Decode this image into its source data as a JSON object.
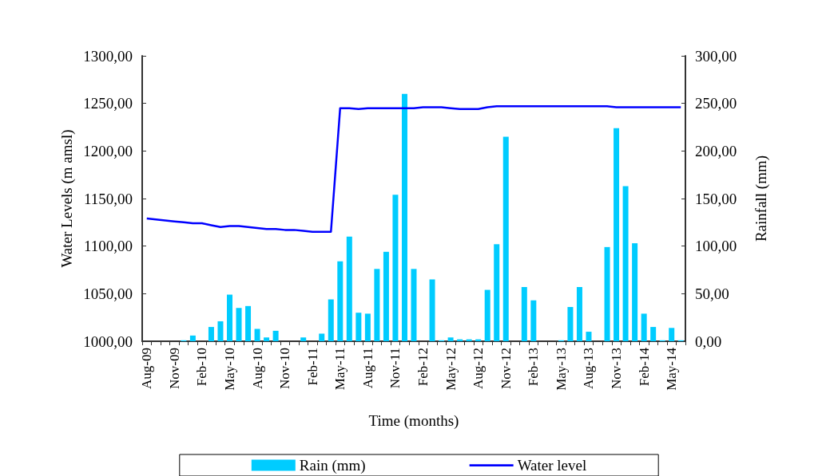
{
  "chart_data": {
    "type": "bar",
    "xlabel": "Time (months)",
    "ylabel": "Water Levels (m amsl)",
    "y2label": "Rainfall (mm)",
    "categories": [
      "Aug-09",
      null,
      null,
      "Nov-09",
      null,
      null,
      "Feb-10",
      null,
      null,
      "May-10",
      null,
      null,
      "Aug-10",
      null,
      null,
      "Nov-10",
      null,
      null,
      "Feb-11",
      null,
      null,
      "May-11",
      null,
      null,
      "Aug-11",
      null,
      null,
      "Nov-11",
      null,
      null,
      "Feb-12",
      null,
      null,
      "May-12",
      null,
      null,
      "Aug-12",
      null,
      null,
      "Nov-12",
      null,
      null,
      "Feb-13",
      null,
      null,
      "May-13",
      null,
      null,
      "Aug-13",
      null,
      null,
      "Nov-13",
      null,
      null,
      "Feb-14",
      null,
      null,
      "May-14",
      null
    ],
    "series": [
      {
        "name": "Rain (mm)",
        "axis": "y2",
        "color": "#00ccff",
        "values": [
          0,
          0,
          0,
          0,
          1,
          6,
          0,
          15,
          21,
          49,
          35,
          37,
          13,
          4,
          11,
          0,
          0,
          4,
          0,
          8,
          44,
          84,
          110,
          30,
          29,
          76,
          94,
          154,
          260,
          76,
          0,
          65,
          1,
          4,
          2,
          2,
          2,
          54,
          102,
          215,
          0,
          57,
          43,
          0,
          0,
          1,
          36,
          57,
          10,
          0,
          99,
          224,
          163,
          103,
          29,
          15,
          1,
          14,
          1
        ]
      },
      {
        "name": "Water level",
        "type": "line",
        "color": "#0000ff",
        "values": [
          1129,
          1128,
          1127,
          1126,
          1125,
          1124,
          1124,
          1122,
          1120,
          1121,
          1121,
          1120,
          1119,
          1118,
          1118,
          1117,
          1117,
          1116,
          1115,
          1115,
          1115,
          1245,
          1245,
          1244,
          1245,
          1245,
          1245,
          1245,
          1245,
          1245,
          1246,
          1246,
          1246,
          1245,
          1244,
          1244,
          1244,
          1246,
          1247,
          1247,
          1247,
          1247,
          1247,
          1247,
          1247,
          1247,
          1247,
          1247,
          1247,
          1247,
          1247,
          1246,
          1246,
          1246,
          1246,
          1246,
          1246,
          1246,
          1246
        ]
      }
    ],
    "ylim": [
      1000,
      1300
    ],
    "yticks": [
      {
        "value": 1000,
        "label": "1000,00"
      },
      {
        "value": 1050,
        "label": "1050,00"
      },
      {
        "value": 1100,
        "label": "1100,00"
      },
      {
        "value": 1150,
        "label": "1150,00"
      },
      {
        "value": 1200,
        "label": "1200,00"
      },
      {
        "value": 1250,
        "label": "1250,00"
      },
      {
        "value": 1300,
        "label": "1300,00"
      }
    ],
    "y2lim": [
      0,
      300
    ],
    "y2ticks": [
      {
        "value": 0,
        "label": "0,00"
      },
      {
        "value": 50,
        "label": "50,00"
      },
      {
        "value": 100,
        "label": "100,00"
      },
      {
        "value": 150,
        "label": "150,00"
      },
      {
        "value": 200,
        "label": "200,00"
      },
      {
        "value": 250,
        "label": "250,00"
      },
      {
        "value": 300,
        "label": "300,00"
      }
    ],
    "legend": "bottom",
    "grid": false,
    "marker": "none",
    "line_style": "solid"
  }
}
